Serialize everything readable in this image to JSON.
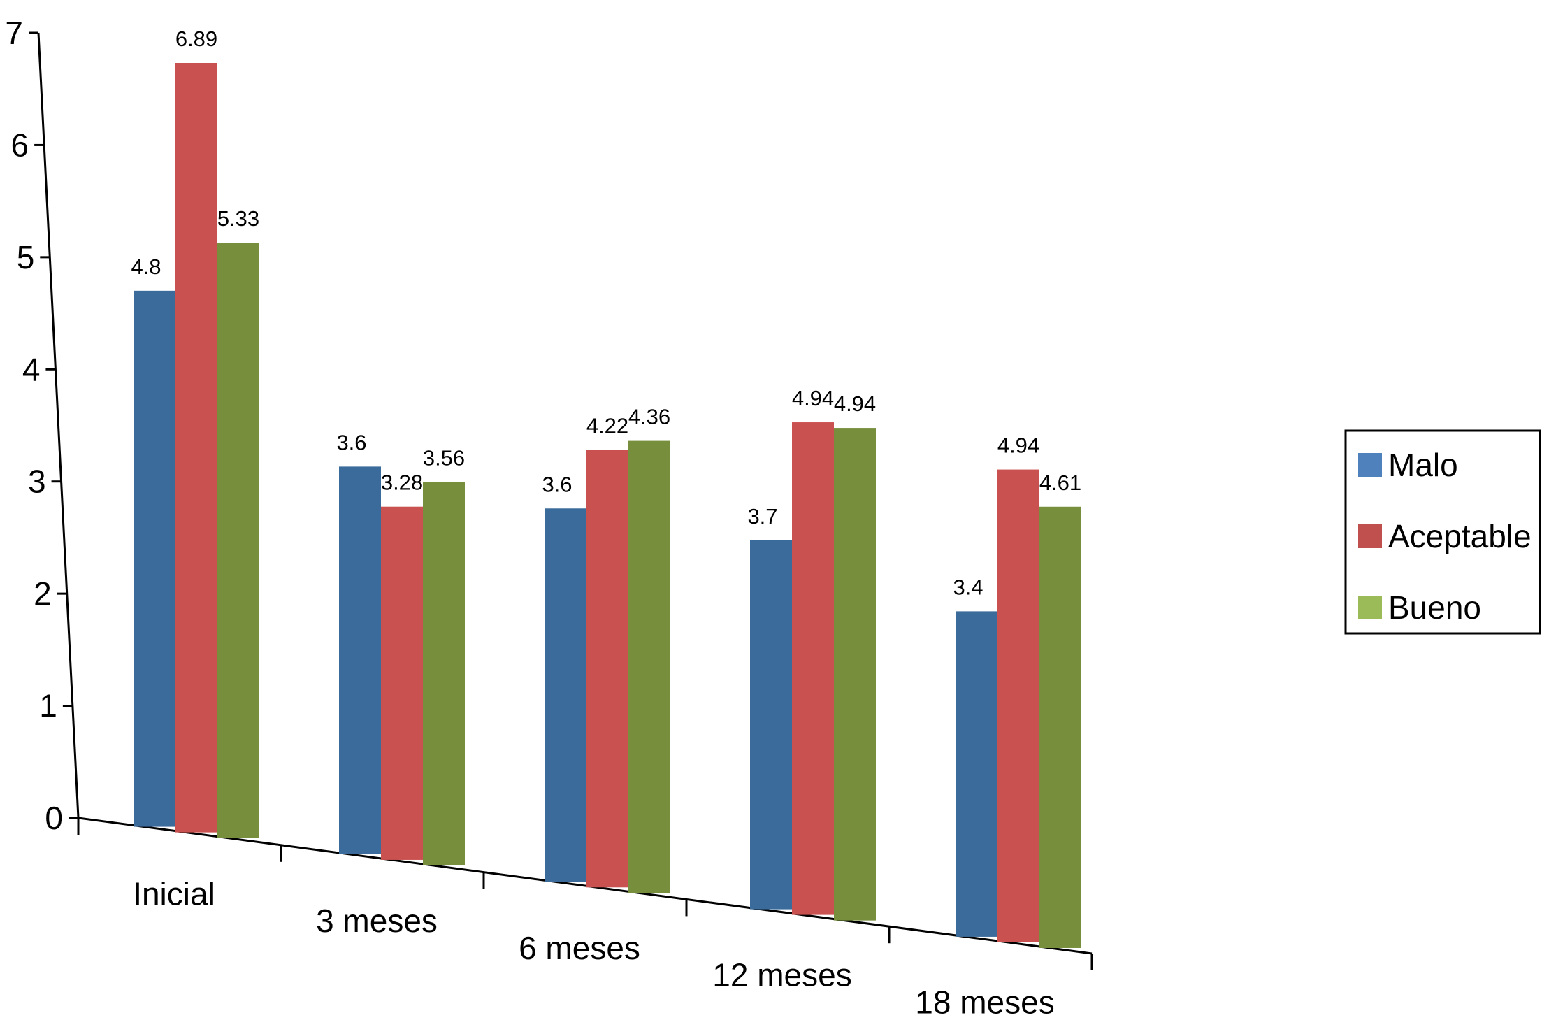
{
  "chart_data": {
    "type": "bar",
    "title": "",
    "xlabel": "",
    "ylabel": "",
    "ylim": [
      0,
      7
    ],
    "yticks": [
      0,
      1,
      2,
      3,
      4,
      5,
      6,
      7
    ],
    "categories": [
      "Inicial",
      "3 meses",
      "6 meses",
      "12 meses",
      "18 meses"
    ],
    "series": [
      {
        "name": "Malo",
        "color": "#3a6b9a",
        "legend_color": "#4f81bd",
        "values": [
          4.8,
          3.6,
          3.6,
          3.7,
          3.4
        ],
        "labels": [
          "4.8",
          "3.6",
          "3.6",
          "3.7",
          "3.4"
        ]
      },
      {
        "name": "Aceptable",
        "color": "#c9514f",
        "legend_color": "#c0504d",
        "values": [
          6.89,
          3.28,
          4.22,
          4.94,
          4.94
        ],
        "labels": [
          "6.89",
          "3.28",
          "4.22",
          "4.94",
          "4.94"
        ]
      },
      {
        "name": "Bueno",
        "color": "#778f3d",
        "legend_color": "#9bbb59",
        "values": [
          5.33,
          3.56,
          4.36,
          4.94,
          4.61
        ],
        "labels": [
          "5.33",
          "3.56",
          "4.36",
          "4.94",
          "4.61"
        ]
      }
    ],
    "grid": false,
    "legend": "right"
  }
}
